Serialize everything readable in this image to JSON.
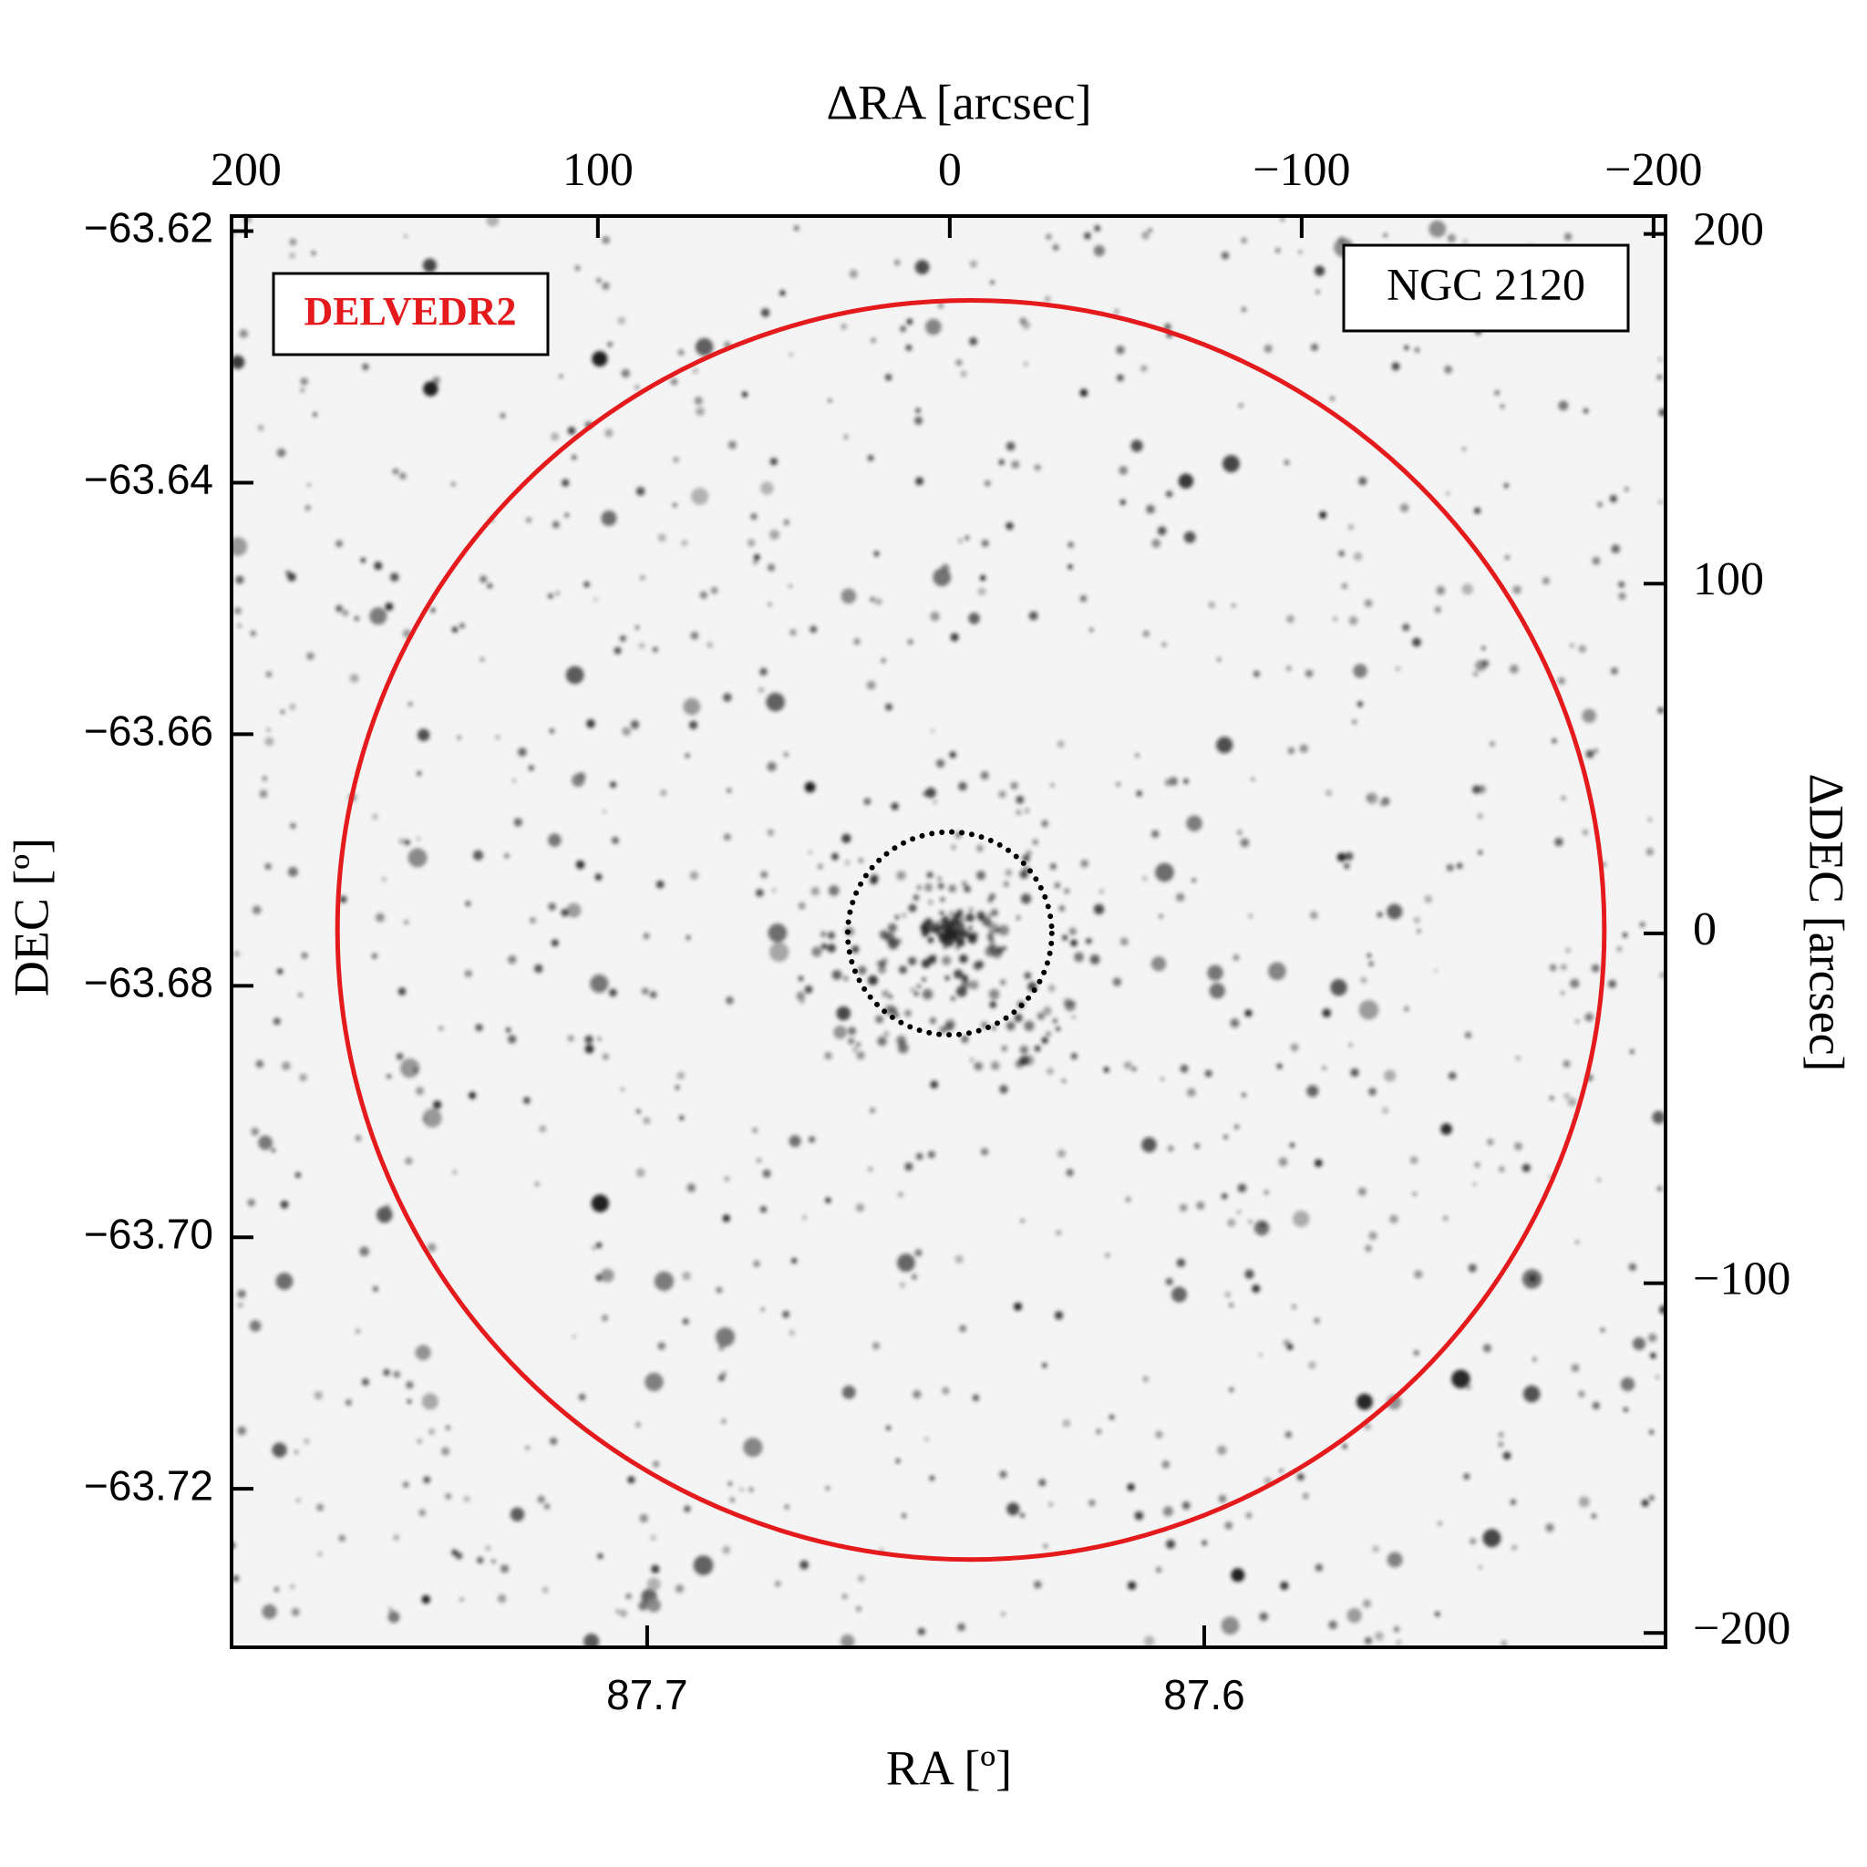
{
  "chart_data": {
    "type": "sky-image",
    "xlabel": "RA [º]",
    "ylabel": "DEC [º]",
    "x2label": "ΔRA [arcsec]",
    "y2label": "ΔDEC [arcsec]",
    "survey_label": "DELVEDR2",
    "object_label": "NGC 2120",
    "xlim": [
      87.7746,
      87.5172
    ],
    "xticks": [
      87.7,
      87.6
    ],
    "ylim": [
      -63.7326,
      -63.6188
    ],
    "yticks": [
      {
        "value": -63.62,
        "label": "−63.62"
      },
      {
        "value": -63.64,
        "label": "−63.64"
      },
      {
        "value": -63.66,
        "label": "−63.66"
      },
      {
        "value": -63.68,
        "label": "−63.68"
      },
      {
        "value": -63.7,
        "label": "−63.70"
      },
      {
        "value": -63.72,
        "label": "−63.72"
      }
    ],
    "x2lim": [
      204.1,
      -203.4
    ],
    "x2ticks": [
      200,
      100,
      0,
      {
        "value": -100,
        "label": "−100"
      },
      {
        "value": -200,
        "label": "−200"
      }
    ],
    "y2lim": [
      -204.1,
      205.1
    ],
    "y2ticks": [
      200,
      100,
      0,
      {
        "value": -100,
        "label": "−100"
      },
      {
        "value": -200,
        "label": "−200"
      }
    ],
    "circles": [
      {
        "center": [
          -6,
          1
        ],
        "radius": 180,
        "color": "#e41a1c",
        "style": "solid"
      },
      {
        "center": [
          0,
          0
        ],
        "radius": 29,
        "color": "#000000",
        "style": "dotted"
      }
    ]
  }
}
